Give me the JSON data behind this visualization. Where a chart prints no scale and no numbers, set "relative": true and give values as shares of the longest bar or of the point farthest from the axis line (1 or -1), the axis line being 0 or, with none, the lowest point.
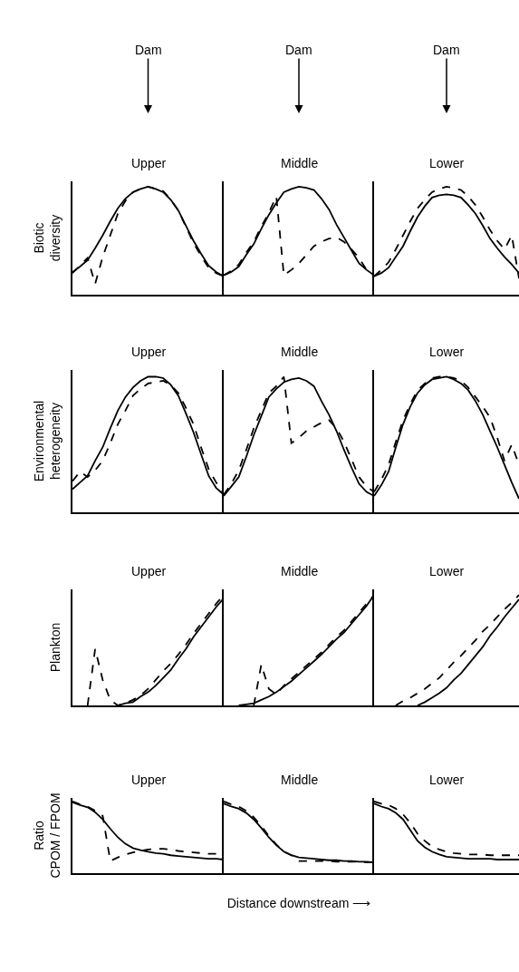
{
  "chart_data": [
    {
      "type": "line",
      "relative": true,
      "title": "Upper",
      "ylabel": "Biotic\ndiversity",
      "annotations": [
        "Dam"
      ],
      "categories": [
        null,
        null,
        null,
        null,
        null,
        null,
        null,
        null,
        null,
        null,
        null,
        null,
        null,
        null,
        null,
        null,
        null,
        null,
        null,
        null,
        null
      ],
      "series": [
        {
          "color": "#000000",
          "line_style": "solid",
          "values": [
            0.21,
            0.26,
            0.32,
            0.43,
            0.55,
            0.68,
            0.8,
            0.89,
            0.95,
            0.98,
            1.0,
            0.98,
            0.95,
            0.88,
            0.78,
            0.64,
            0.5,
            0.38,
            0.27,
            0.21,
            0.17
          ]
        },
        {
          "color": "#000000",
          "line_style": "dashed",
          "values": [
            0.2,
            0.27,
            0.34,
            0.1,
            0.35,
            0.55,
            0.75,
            0.87,
            0.95,
            0.98,
            1.0,
            0.98,
            0.96,
            0.88,
            0.78,
            0.63,
            0.48,
            0.36,
            0.25,
            0.2,
            0.17
          ]
        }
      ]
    },
    {
      "type": "line",
      "relative": true,
      "title": "Middle",
      "annotations": [
        "Dam"
      ],
      "categories": [
        null,
        null,
        null,
        null,
        null,
        null,
        null,
        null,
        null,
        null,
        null,
        null,
        null,
        null,
        null,
        null,
        null,
        null,
        null,
        null,
        null
      ],
      "series": [
        {
          "color": "#000000",
          "line_style": "solid",
          "values": [
            0.18,
            0.21,
            0.26,
            0.37,
            0.47,
            0.61,
            0.74,
            0.85,
            0.95,
            0.98,
            1.0,
            0.99,
            0.97,
            0.89,
            0.79,
            0.65,
            0.53,
            0.41,
            0.29,
            0.23,
            0.18
          ]
        },
        {
          "color": "#000000",
          "line_style": "dashed",
          "values": [
            0.18,
            0.22,
            0.28,
            0.39,
            0.49,
            0.63,
            0.76,
            0.91,
            0.18,
            0.23,
            0.29,
            0.37,
            0.45,
            0.49,
            0.52,
            0.53,
            0.49,
            0.42,
            0.34,
            0.23,
            0.18
          ]
        }
      ]
    },
    {
      "type": "line",
      "relative": true,
      "title": "Lower",
      "annotations": [
        "Dam"
      ],
      "categories": [
        null,
        null,
        null,
        null,
        null,
        null,
        null,
        null,
        null,
        null,
        null,
        null,
        null,
        null,
        null,
        null,
        null,
        null,
        null,
        null,
        null
      ],
      "series": [
        {
          "color": "#000000",
          "line_style": "solid",
          "values": [
            0.17,
            0.2,
            0.25,
            0.35,
            0.45,
            0.59,
            0.72,
            0.82,
            0.9,
            0.92,
            0.93,
            0.92,
            0.9,
            0.83,
            0.75,
            0.64,
            0.52,
            0.43,
            0.35,
            0.28,
            0.2
          ]
        },
        {
          "color": "#000000",
          "line_style": "dashed",
          "values": [
            0.17,
            0.23,
            0.3,
            0.42,
            0.55,
            0.68,
            0.8,
            0.88,
            0.95,
            0.98,
            1.0,
            0.99,
            0.97,
            0.91,
            0.83,
            0.72,
            0.6,
            0.5,
            0.42,
            0.55,
            0.15
          ]
        }
      ]
    },
    {
      "type": "line",
      "relative": true,
      "title": "Upper",
      "ylabel": "Environmental\nheterogeneity",
      "categories": [
        null,
        null,
        null,
        null,
        null,
        null,
        null,
        null,
        null,
        null,
        null,
        null,
        null,
        null,
        null,
        null,
        null,
        null,
        null,
        null,
        null
      ],
      "series": [
        {
          "color": "#000000",
          "line_style": "solid",
          "values": [
            0.17,
            0.22,
            0.27,
            0.38,
            0.48,
            0.62,
            0.75,
            0.85,
            0.92,
            0.97,
            1.0,
            1.0,
            0.99,
            0.94,
            0.86,
            0.73,
            0.59,
            0.43,
            0.27,
            0.18,
            0.13
          ]
        },
        {
          "color": "#000000",
          "line_style": "dashed",
          "values": [
            0.23,
            0.3,
            0.26,
            0.31,
            0.38,
            0.51,
            0.65,
            0.75,
            0.86,
            0.91,
            0.95,
            0.96,
            0.97,
            0.94,
            0.88,
            0.77,
            0.65,
            0.48,
            0.32,
            0.22,
            0.14
          ]
        }
      ]
    },
    {
      "type": "line",
      "relative": true,
      "title": "Middle",
      "categories": [
        null,
        null,
        null,
        null,
        null,
        null,
        null,
        null,
        null,
        null,
        null,
        null,
        null,
        null,
        null,
        null,
        null,
        null,
        null,
        null,
        null
      ],
      "series": [
        {
          "color": "#000000",
          "line_style": "solid",
          "values": [
            0.12,
            0.19,
            0.26,
            0.41,
            0.57,
            0.71,
            0.85,
            0.91,
            0.96,
            0.98,
            0.99,
            0.97,
            0.93,
            0.82,
            0.72,
            0.6,
            0.46,
            0.33,
            0.21,
            0.15,
            0.12
          ]
        },
        {
          "color": "#000000",
          "line_style": "dashed",
          "values": [
            0.13,
            0.21,
            0.31,
            0.46,
            0.62,
            0.75,
            0.88,
            0.93,
            1.0,
            0.51,
            0.55,
            0.6,
            0.63,
            0.66,
            0.68,
            0.62,
            0.52,
            0.39,
            0.26,
            0.19,
            0.15
          ]
        }
      ]
    },
    {
      "type": "line",
      "relative": true,
      "title": "Lower",
      "categories": [
        null,
        null,
        null,
        null,
        null,
        null,
        null,
        null,
        null,
        null,
        null,
        null,
        null,
        null,
        null,
        null,
        null,
        null,
        null,
        null,
        null
      ],
      "series": [
        {
          "color": "#000000",
          "line_style": "solid",
          "values": [
            0.12,
            0.2,
            0.3,
            0.48,
            0.65,
            0.78,
            0.88,
            0.94,
            0.98,
            0.99,
            1.0,
            0.98,
            0.95,
            0.9,
            0.82,
            0.72,
            0.6,
            0.48,
            0.35,
            0.22,
            0.1
          ]
        },
        {
          "color": "#000000",
          "line_style": "dashed",
          "values": [
            0.15,
            0.24,
            0.35,
            0.52,
            0.68,
            0.8,
            0.9,
            0.95,
            0.99,
            1.0,
            1.0,
            0.99,
            0.97,
            0.92,
            0.85,
            0.78,
            0.7,
            0.55,
            0.38,
            0.5,
            0.35
          ]
        }
      ]
    },
    {
      "type": "line",
      "relative": true,
      "title": "Upper",
      "ylabel": "Plankton",
      "categories": [
        null,
        null,
        null,
        null,
        null,
        null,
        null,
        null,
        null,
        null,
        null,
        null,
        null,
        null,
        null,
        null,
        null,
        null,
        null,
        null,
        null
      ],
      "series": [
        {
          "color": "#000000",
          "line_style": "solid",
          "values": [
            null,
            null,
            null,
            null,
            null,
            null,
            0,
            0.02,
            0.03,
            0.08,
            0.12,
            0.18,
            0.25,
            0.32,
            0.42,
            0.51,
            0.62,
            0.71,
            0.8,
            0.89,
            0.97
          ]
        },
        {
          "color": "#000000",
          "line_style": "dashed",
          "values": [
            null,
            null,
            0,
            0.51,
            0.23,
            0.05,
            0,
            0.02,
            0.05,
            0.09,
            0.15,
            0.23,
            0.31,
            0.38,
            0.46,
            0.55,
            0.65,
            0.74,
            0.83,
            0.92,
            1.0
          ]
        }
      ]
    },
    {
      "type": "line",
      "relative": true,
      "title": "Middle",
      "categories": [
        null,
        null,
        null,
        null,
        null,
        null,
        null,
        null,
        null,
        null,
        null,
        null,
        null,
        null,
        null,
        null,
        null,
        null,
        null,
        null,
        null
      ],
      "series": [
        {
          "color": "#000000",
          "line_style": "solid",
          "values": [
            null,
            null,
            0,
            0.01,
            0.02,
            0.05,
            0.08,
            0.12,
            0.17,
            0.22,
            0.28,
            0.34,
            0.4,
            0.46,
            0.53,
            0.6,
            0.66,
            0.74,
            0.82,
            0.9,
            1.0
          ]
        },
        {
          "color": "#000000",
          "line_style": "dashed",
          "values": [
            null,
            null,
            null,
            null,
            0,
            0.37,
            0.15,
            0.1,
            0.18,
            0.24,
            0.3,
            0.36,
            0.42,
            0.48,
            0.55,
            0.62,
            0.68,
            0.76,
            0.84,
            0.92,
            1.0
          ]
        }
      ]
    },
    {
      "type": "line",
      "relative": true,
      "title": "Lower",
      "categories": [
        null,
        null,
        null,
        null,
        null,
        null,
        null,
        null,
        null,
        null,
        null,
        null,
        null,
        null,
        null,
        null,
        null,
        null,
        null,
        null,
        null
      ],
      "series": [
        {
          "color": "#000000",
          "line_style": "solid",
          "values": [
            null,
            null,
            null,
            null,
            null,
            null,
            0,
            0.03,
            0.07,
            0.11,
            0.16,
            0.23,
            0.29,
            0.37,
            0.45,
            0.53,
            0.63,
            0.71,
            0.8,
            0.88,
            0.96
          ]
        },
        {
          "color": "#000000",
          "line_style": "dashed",
          "values": [
            null,
            null,
            null,
            0,
            0.04,
            0.07,
            0.11,
            0.15,
            0.2,
            0.25,
            0.32,
            0.39,
            0.45,
            0.52,
            0.59,
            0.67,
            0.73,
            0.8,
            0.87,
            0.93,
            1.0
          ]
        }
      ]
    },
    {
      "type": "line",
      "relative": true,
      "title": "Upper",
      "ylabel": "Ratio\nCPOM / FPOM",
      "categories": [
        null,
        null,
        null,
        null,
        null,
        null,
        null,
        null,
        null,
        null,
        null,
        null,
        null,
        null,
        null,
        null,
        null,
        null,
        null,
        null,
        null
      ],
      "series": [
        {
          "color": "#000000",
          "line_style": "solid",
          "values": [
            0.99,
            0.95,
            0.92,
            0.85,
            0.75,
            0.62,
            0.5,
            0.41,
            0.35,
            0.32,
            0.3,
            0.28,
            0.27,
            0.25,
            0.24,
            0.23,
            0.22,
            0.21,
            0.2,
            0.2,
            0.19
          ]
        },
        {
          "color": "#000000",
          "line_style": "dashed",
          "values": [
            1.0,
            0.96,
            0.93,
            0.87,
            0.8,
            0.17,
            0.22,
            0.26,
            0.29,
            0.31,
            0.33,
            0.34,
            0.34,
            0.33,
            0.31,
            0.3,
            0.29,
            0.28,
            0.27,
            0.27,
            0.26
          ]
        }
      ]
    },
    {
      "type": "line",
      "relative": true,
      "title": "Middle",
      "xlabel": "Distance downstream ⟶",
      "categories": [
        null,
        null,
        null,
        null,
        null,
        null,
        null,
        null,
        null,
        null,
        null,
        null,
        null,
        null,
        null,
        null,
        null,
        null,
        null,
        null,
        null
      ],
      "series": [
        {
          "color": "#000000",
          "line_style": "solid",
          "values": [
            0.97,
            0.93,
            0.9,
            0.84,
            0.75,
            0.63,
            0.5,
            0.39,
            0.3,
            0.25,
            0.22,
            0.21,
            0.2,
            0.19,
            0.18,
            0.18,
            0.17,
            0.17,
            0.16,
            0.16,
            0.15
          ]
        },
        {
          "color": "#000000",
          "line_style": "dashed",
          "values": [
            1.0,
            0.96,
            0.93,
            0.87,
            0.78,
            0.66,
            0.52,
            0.4,
            0.3,
            0.25,
            0.17,
            0.17,
            0.17,
            0.17,
            0.17,
            0.16,
            0.16,
            0.16,
            0.16,
            0.15,
            0.15
          ]
        }
      ]
    },
    {
      "type": "line",
      "relative": true,
      "title": "Lower",
      "categories": [
        null,
        null,
        null,
        null,
        null,
        null,
        null,
        null,
        null,
        null,
        null,
        null,
        null,
        null,
        null,
        null,
        null,
        null,
        null,
        null,
        null
      ],
      "series": [
        {
          "color": "#000000",
          "line_style": "solid",
          "values": [
            0.97,
            0.93,
            0.9,
            0.84,
            0.75,
            0.6,
            0.45,
            0.36,
            0.3,
            0.26,
            0.23,
            0.22,
            0.21,
            0.2,
            0.2,
            0.2,
            0.2,
            0.19,
            0.19,
            0.19,
            0.19
          ]
        },
        {
          "color": "#000000",
          "line_style": "dashed",
          "values": [
            1.0,
            0.97,
            0.95,
            0.9,
            0.82,
            0.7,
            0.55,
            0.45,
            0.37,
            0.33,
            0.3,
            0.28,
            0.27,
            0.26,
            0.26,
            0.26,
            0.25,
            0.25,
            0.25,
            0.25,
            0.25
          ]
        }
      ]
    }
  ]
}
